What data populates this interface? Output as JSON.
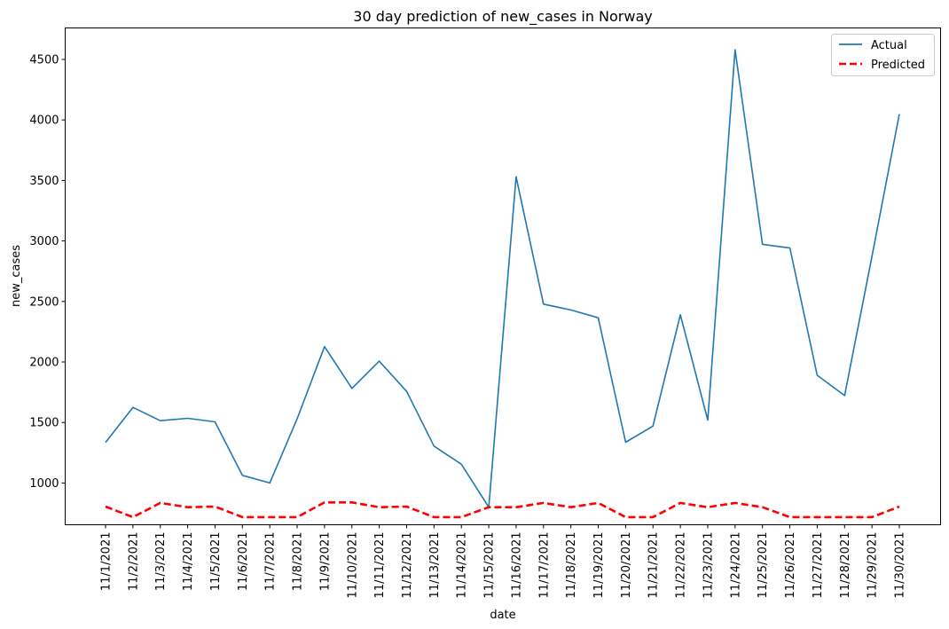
{
  "chart_data": {
    "type": "line",
    "title": "30 day prediction of new_cases in Norway",
    "xlabel": "date",
    "ylabel": "new_cases",
    "categories": [
      "11/1/2021",
      "11/2/2021",
      "11/3/2021",
      "11/4/2021",
      "11/5/2021",
      "11/6/2021",
      "11/7/2021",
      "11/8/2021",
      "11/9/2021",
      "11/10/2021",
      "11/11/2021",
      "11/12/2021",
      "11/13/2021",
      "11/14/2021",
      "11/15/2021",
      "11/16/2021",
      "11/17/2021",
      "11/18/2021",
      "11/19/2021",
      "11/20/2021",
      "11/21/2021",
      "11/22/2021",
      "11/23/2021",
      "11/24/2021",
      "11/25/2021",
      "11/26/2021",
      "11/27/2021",
      "11/28/2021",
      "11/29/2021",
      "11/30/2021"
    ],
    "ylim": [
      655,
      4760
    ],
    "yticks": [
      1000,
      1500,
      2000,
      2500,
      3000,
      3500,
      4000,
      4500
    ],
    "grid": false,
    "legend_position": "top-right",
    "series": [
      {
        "name": "Actual",
        "color": "#1f77b4",
        "style": "solid",
        "values": [
          1335,
          1625,
          1515,
          1535,
          1505,
          1063,
          1000,
          1530,
          2127,
          1782,
          2007,
          1757,
          1305,
          1155,
          800,
          3530,
          2478,
          2430,
          2365,
          1337,
          1470,
          2390,
          1520,
          4580,
          2972,
          2942,
          1890,
          1722,
          2870,
          4048
        ]
      },
      {
        "name": "Predicted",
        "color": "#ff0000",
        "style": "dashed",
        "values": [
          805,
          718,
          835,
          800,
          805,
          718,
          718,
          718,
          840,
          840,
          800,
          805,
          718,
          718,
          800,
          800,
          835,
          800,
          835,
          718,
          718,
          835,
          800,
          835,
          800,
          718,
          718,
          718,
          718,
          805
        ]
      }
    ]
  }
}
